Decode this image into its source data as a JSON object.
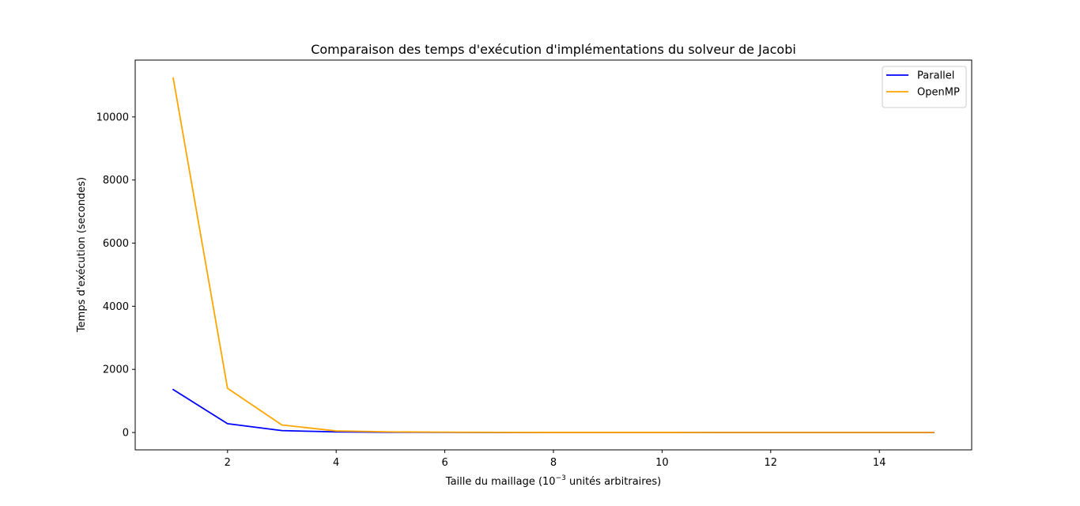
{
  "chart_data": {
    "type": "line",
    "title": "Comparaison des temps d'exécution d'implémentations du solveur de Jacobi",
    "xlabel_prefix": "Taille du maillage (10",
    "xlabel_sup": "−3",
    "xlabel_suffix": " unités arbitraires)",
    "ylabel": "Temps d'exécution (secondes)",
    "xlim": [
      0.3,
      15.7
    ],
    "ylim": [
      -550,
      11800
    ],
    "xticks": [
      2,
      4,
      6,
      8,
      10,
      12,
      14
    ],
    "yticks": [
      0,
      2000,
      4000,
      6000,
      8000,
      10000
    ],
    "x": [
      1,
      2,
      3,
      4,
      5,
      6,
      7,
      8,
      9,
      10,
      11,
      12,
      13,
      14,
      15
    ],
    "series": [
      {
        "name": "Parallel",
        "color": "#0000ff",
        "values": [
          1360,
          280,
          60,
          20,
          8,
          4,
          2,
          1,
          1,
          1,
          0,
          0,
          0,
          0,
          0
        ]
      },
      {
        "name": "OpenMP",
        "color": "#ffa500",
        "values": [
          11230,
          1400,
          240,
          50,
          20,
          10,
          5,
          3,
          2,
          2,
          1,
          1,
          1,
          1,
          1
        ]
      }
    ],
    "legend_position": "top-right",
    "grid": false
  }
}
